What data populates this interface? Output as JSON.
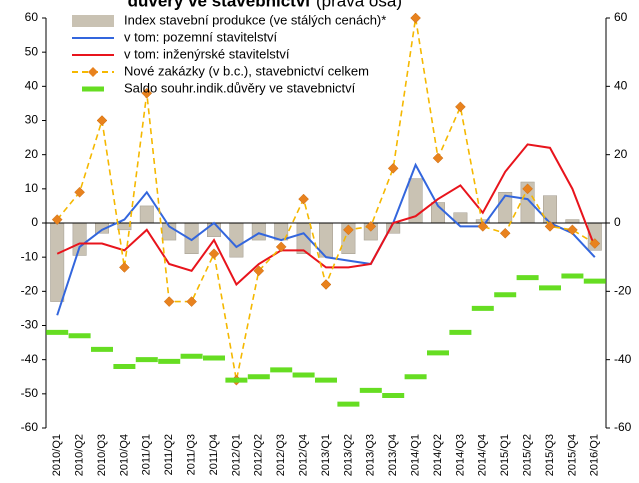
{
  "chart_data": {
    "type": "combo",
    "title": "důvěry ve stavebnictví",
    "subtitle": "(pravá osa)",
    "categories": [
      "2010/Q1",
      "2010/Q2",
      "2010/Q3",
      "2010/Q4",
      "2011/Q1",
      "2011/Q2",
      "2011/Q3",
      "2011/Q4",
      "2012/Q1",
      "2012/Q2",
      "2012/Q3",
      "2012/Q4",
      "2013/Q1",
      "2013/Q2",
      "2013/Q3",
      "2013/Q4",
      "2014/Q1",
      "2014/Q2",
      "2014/Q3",
      "2014/Q4",
      "2015/Q1",
      "2015/Q2",
      "2015/Q3",
      "2015/Q4",
      "2016/Q1"
    ],
    "series": [
      {
        "name": "Index stavební produkce (ve stálých cenách)*",
        "type": "bar",
        "color": "#c9c2b3",
        "values": [
          -23,
          -9.5,
          -3,
          -2,
          5,
          -5,
          -9,
          -4,
          -10,
          -5,
          -5,
          -9,
          -10,
          -9,
          -5,
          -3,
          13,
          6,
          3,
          1,
          9,
          12,
          8,
          1,
          -8
        ]
      },
      {
        "name": "v tom: pozemní stavitelství",
        "type": "line",
        "color": "#3366dd",
        "values": [
          -27,
          -7,
          -2,
          1,
          9,
          -1,
          -5,
          0,
          -7,
          -3,
          -5,
          -3,
          -10,
          -11,
          -12,
          0,
          17,
          5,
          -1,
          -1,
          8,
          7,
          0,
          -3,
          -10
        ]
      },
      {
        "name": "v tom: inženýrské stavitelství",
        "type": "line",
        "color": "#e8141c",
        "values": [
          -9,
          -6,
          -6,
          -8,
          -2,
          -12,
          -14,
          -5,
          -18,
          -12,
          -8,
          -8,
          -13,
          -13,
          -12,
          0,
          2,
          7,
          11,
          3,
          15,
          23,
          22,
          10,
          -7
        ]
      },
      {
        "name": "Nové zakázky (v b.c.), stavebnictví celkem",
        "type": "line",
        "line_style": "dashed",
        "marker": "diamond",
        "marker_color": "#e8821e",
        "color": "#f5b800",
        "axis": "y2",
        "values": [
          1,
          9,
          30,
          -13,
          38,
          -23,
          -23,
          -9,
          -46,
          -14,
          -7,
          7,
          -18,
          -2,
          -1,
          16,
          60,
          19,
          34,
          -1,
          -3,
          10,
          -1,
          -2,
          -6
        ]
      },
      {
        "name": "Saldo souhr.indik.důvěry ve stavebnictví",
        "type": "dash",
        "color": "#66dd22",
        "axis": "y2",
        "values": [
          -32,
          -33,
          -37,
          -42,
          -40,
          -40.5,
          -39,
          -39.5,
          -46,
          -45,
          -43,
          -44.5,
          -46,
          -53,
          -49,
          -50.5,
          -45,
          -38,
          -32,
          -25,
          -21,
          -16,
          -19,
          -15.5,
          -17
        ]
      }
    ],
    "ylim": [
      -60,
      60
    ],
    "yticks": [
      -60,
      -50,
      -40,
      -30,
      -20,
      -10,
      0,
      10,
      20,
      30,
      40,
      50,
      60
    ],
    "y2lim": [
      -60,
      60
    ],
    "y2ticks": [
      -60,
      -40,
      -20,
      0,
      20,
      40,
      60
    ],
    "legend": "top-left"
  }
}
